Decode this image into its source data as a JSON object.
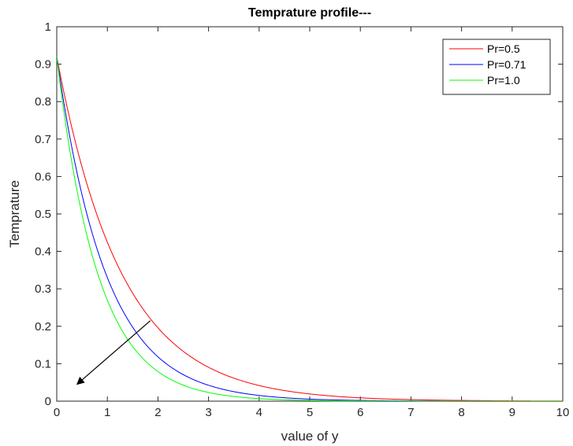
{
  "chart_data": {
    "type": "line",
    "title": "Temprature profile---",
    "xlabel": "value of y",
    "ylabel": "Temprature",
    "xlim": [
      0,
      10
    ],
    "ylim": [
      0,
      1
    ],
    "xticks": [
      0,
      1,
      2,
      3,
      4,
      5,
      6,
      7,
      8,
      9,
      10
    ],
    "yticks": [
      0,
      0.1,
      0.2,
      0.3,
      0.4,
      0.5,
      0.6,
      0.7,
      0.8,
      0.9,
      1
    ],
    "grid": false,
    "legend_position": "top-right",
    "x": [
      0,
      0.5,
      1,
      1.5,
      2,
      2.5,
      3,
      3.5,
      4,
      4.5,
      5,
      5.5,
      6,
      6.5,
      7,
      7.5,
      8,
      8.5,
      9,
      9.5,
      10
    ],
    "series": [
      {
        "name": "Pr=0.5",
        "color": "#ff0000",
        "values": [
          0.92,
          0.625,
          0.425,
          0.289,
          0.196,
          0.133,
          0.091,
          0.062,
          0.042,
          0.028,
          0.019,
          0.013,
          0.009,
          0.006,
          0.004,
          0.003,
          0.002,
          0.001,
          0.001,
          0.001,
          0.0
        ]
      },
      {
        "name": "Pr=0.71",
        "color": "#0000ff",
        "values": [
          0.92,
          0.551,
          0.33,
          0.198,
          0.118,
          0.071,
          0.043,
          0.025,
          0.015,
          0.009,
          0.005,
          0.003,
          0.002,
          0.001,
          0.001,
          0.0,
          0.0,
          0.0,
          0.0,
          0.0,
          0.0
        ]
      },
      {
        "name": "Pr=1.0",
        "color": "#00ff00",
        "values": [
          0.92,
          0.498,
          0.27,
          0.146,
          0.079,
          0.043,
          0.023,
          0.013,
          0.007,
          0.004,
          0.002,
          0.001,
          0.001,
          0.0,
          0.0,
          0.0,
          0.0,
          0.0,
          0.0,
          0.0,
          0.0
        ]
      }
    ],
    "annotations": [
      {
        "type": "arrow",
        "from": [
          1.85,
          0.215
        ],
        "to": [
          0.4,
          0.045
        ],
        "color": "#000000"
      }
    ]
  }
}
